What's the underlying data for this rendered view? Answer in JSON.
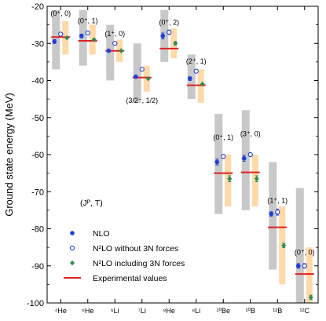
{
  "chart_data": {
    "type": "scatter",
    "ylabel": "Ground state energy (MeV)",
    "xlabel": "",
    "ylim": [
      -100,
      -20
    ],
    "yticks": [
      -100,
      -90,
      -80,
      -70,
      -60,
      -50,
      -40,
      -30,
      -20
    ],
    "grid": false,
    "legend_placement": "bottom-left",
    "legend_header": "(Jᴾ, T)",
    "categories": [
      "⁴He",
      "⁶He",
      "⁶Li",
      "⁷Li",
      "⁸He",
      "⁸Li",
      "¹⁰Be",
      "¹⁰B",
      "¹²B",
      "¹²C"
    ],
    "annotations": [
      {
        "text": "(0⁺, 0)",
        "category": 0,
        "y": -22.5
      },
      {
        "text": "(0⁺, 1)",
        "category": 1,
        "y": -24.5
      },
      {
        "text": "(1⁺, 0)",
        "category": 2,
        "y": -28.0
      },
      {
        "text": "(3/2⁻, 1/2)",
        "category": 3,
        "y": -46.0
      },
      {
        "text": "(0⁺, 2)",
        "category": 4,
        "y": -25.0
      },
      {
        "text": "(2⁺, 1)",
        "category": 5,
        "y": -35.5
      },
      {
        "text": "(0⁺, 1)",
        "category": 6,
        "y": -56.0
      },
      {
        "text": "(3⁺, 0)",
        "category": 7,
        "y": -55.0
      },
      {
        "text": "(1⁺, 1)",
        "category": 8,
        "y": -73.0
      },
      {
        "text": "(0⁺, 0)",
        "category": 9,
        "y": -87.0
      }
    ],
    "series": [
      {
        "name": "NLO",
        "color": "#1f3fd6",
        "marker": "filled-circle",
        "values": [
          -29.5,
          -28.0,
          -32.0,
          -39.0,
          -28.0,
          -39.5,
          -62.0,
          -61.0,
          -76.0,
          -90.0
        ],
        "error": [
          0.5,
          0.5,
          0.4,
          0.4,
          0.8,
          0.5,
          0.8,
          0.8,
          0.6,
          0.6
        ]
      },
      {
        "name": "N²LO without 3N forces",
        "color": "#1f3fd6",
        "marker": "open-circle",
        "values": [
          -27.5,
          -27.2,
          -30.0,
          -37.0,
          -27.0,
          -37.5,
          -60.5,
          -60.0,
          -75.5,
          -90.0
        ],
        "error": [
          0.2,
          0.2,
          0.2,
          0.2,
          0.6,
          0.2,
          0.5,
          0.4,
          0.8,
          0.6
        ]
      },
      {
        "name": "N²LO including 3N forces",
        "color": "#2e8b57",
        "marker": "filled-diamond",
        "values": [
          -28.5,
          -29.0,
          -32.0,
          -39.5,
          -30.0,
          -41.0,
          -66.5,
          -66.5,
          -84.5,
          -98.5
        ],
        "error": [
          0.3,
          0.3,
          0.3,
          0.3,
          0.5,
          0.3,
          0.8,
          0.8,
          0.6,
          0.6
        ]
      },
      {
        "name": "Experimental values",
        "color": "#e02020",
        "marker": "line",
        "values": [
          -28.3,
          -29.3,
          -32.0,
          -39.2,
          -31.4,
          -41.3,
          -65.0,
          -64.8,
          -79.6,
          -92.2
        ]
      }
    ],
    "uncertainty_bands": [
      {
        "name": "NLO band",
        "color": "#c8c8c8",
        "ranges": [
          [
            -37,
            -21
          ],
          [
            -36,
            -21
          ],
          [
            -40,
            -25
          ],
          [
            -46,
            -30
          ],
          [
            -35,
            -21
          ],
          [
            -45,
            -33
          ],
          [
            -76,
            -49
          ],
          [
            -75,
            -48
          ],
          [
            -91,
            -62
          ],
          [
            -100,
            -69
          ]
        ]
      },
      {
        "name": "N²LO band",
        "color": "#ffd9a8",
        "ranges": [
          [
            -33,
            -24
          ],
          [
            -33,
            -25
          ],
          [
            -35,
            -29
          ],
          [
            -43,
            -36
          ],
          [
            -34,
            -26
          ],
          [
            -46,
            -37
          ],
          [
            -74,
            -60
          ],
          [
            -74,
            -60
          ],
          [
            -95,
            -74
          ],
          [
            -100,
            -85
          ]
        ]
      }
    ]
  }
}
